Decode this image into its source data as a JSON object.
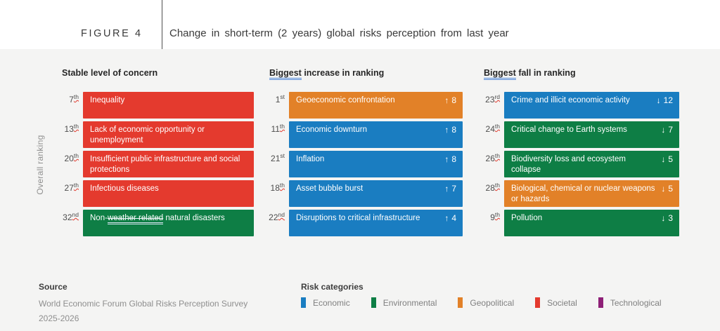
{
  "figure": {
    "label": "FIGURE 4",
    "title": "Change in short-term (2 years) global risks perception from last year"
  },
  "overall_ranking_label": "Overall ranking",
  "chart_data": {
    "type": "table",
    "title": "Change in short-term (2 years) global risks perception from last year",
    "risk_category_colors": {
      "Economic": "#1a7dc1",
      "Environmental": "#0e7e45",
      "Geopolitical": "#e28128",
      "Societal": "#e43a2e",
      "Technological": "#8e2077"
    },
    "groups": [
      {
        "name": "Stable level of concern",
        "header": {
          "flagged": "",
          "rest": "Stable level of concern"
        },
        "rows": [
          {
            "rank": "7",
            "suffix": "th",
            "label": "Inequality",
            "category": "Societal",
            "change": "0"
          },
          {
            "rank": "13",
            "suffix": "th",
            "label": "Lack of economic opportunity or unemployment",
            "category": "Societal",
            "change": "0"
          },
          {
            "rank": "20",
            "suffix": "th",
            "label": "Insufficient public infrastructure and social protections",
            "category": "Societal",
            "change": "0"
          },
          {
            "rank": "27",
            "suffix": "th",
            "label": "Infectious diseases",
            "category": "Societal",
            "change": "0"
          },
          {
            "rank": "32",
            "suffix": "nd",
            "label": "Non-weather related natural disasters",
            "label_parts": {
              "pre": "Non-",
              "flagged": "weather related",
              "post": " natural disasters"
            },
            "category": "Environmental",
            "change": "0"
          }
        ]
      },
      {
        "name": "Biggest increase in ranking",
        "header": {
          "flagged": "Biggest",
          "rest": " increase in ranking"
        },
        "rows": [
          {
            "rank": "1",
            "suffix": "st",
            "label": "Geoeconomic confrontation",
            "category": "Geopolitical",
            "arrow": "↑",
            "amount": "8",
            "change": "+8"
          },
          {
            "rank": "11",
            "suffix": "th",
            "label": "Economic downturn",
            "category": "Economic",
            "arrow": "↑",
            "amount": "8",
            "change": "+8"
          },
          {
            "rank": "21",
            "suffix": "st",
            "label": "Inflation",
            "category": "Economic",
            "arrow": "↑",
            "amount": "8",
            "change": "+8"
          },
          {
            "rank": "18",
            "suffix": "th",
            "label": "Asset bubble burst",
            "category": "Economic",
            "arrow": "↑",
            "amount": "7",
            "change": "+7"
          },
          {
            "rank": "22",
            "suffix": "nd",
            "label": "Disruptions to critical infrastructure",
            "category": "Economic",
            "arrow": "↑",
            "amount": "4",
            "change": "+4"
          }
        ]
      },
      {
        "name": "Biggest fall in ranking",
        "header": {
          "flagged": "Biggest",
          "rest": " fall in ranking"
        },
        "rows": [
          {
            "rank": "23",
            "suffix": "rd",
            "label": "Crime and illicit economic activity",
            "category": "Economic",
            "arrow": "↓",
            "amount": "12",
            "change": "-12"
          },
          {
            "rank": "24",
            "suffix": "th",
            "label": "Critical change to Earth systems",
            "category": "Environmental",
            "arrow": "↓",
            "amount": "7",
            "change": "-7"
          },
          {
            "rank": "26",
            "suffix": "th",
            "label": "Biodiversity loss and ecosystem collapse",
            "category": "Environmental",
            "arrow": "↓",
            "amount": "5",
            "change": "-5"
          },
          {
            "rank": "28",
            "suffix": "th",
            "label": "Biological, chemical or nuclear weapons or hazards",
            "category": "Geopolitical",
            "arrow": "↓",
            "amount": "5",
            "change": "-5"
          },
          {
            "rank": "9",
            "suffix": "th",
            "label": "Pollution",
            "category": "Environmental",
            "arrow": "↓",
            "amount": "3",
            "change": "-3"
          }
        ]
      }
    ]
  },
  "legend": {
    "title": "Risk categories",
    "items": [
      {
        "label": "Economic"
      },
      {
        "label": "Environmental"
      },
      {
        "label": "Geopolitical"
      },
      {
        "label": "Societal"
      },
      {
        "label": "Technological"
      }
    ]
  },
  "source": {
    "title": "Source",
    "line1": "World Economic Forum Global Risks Perception Survey",
    "line2": "2025-2026"
  }
}
